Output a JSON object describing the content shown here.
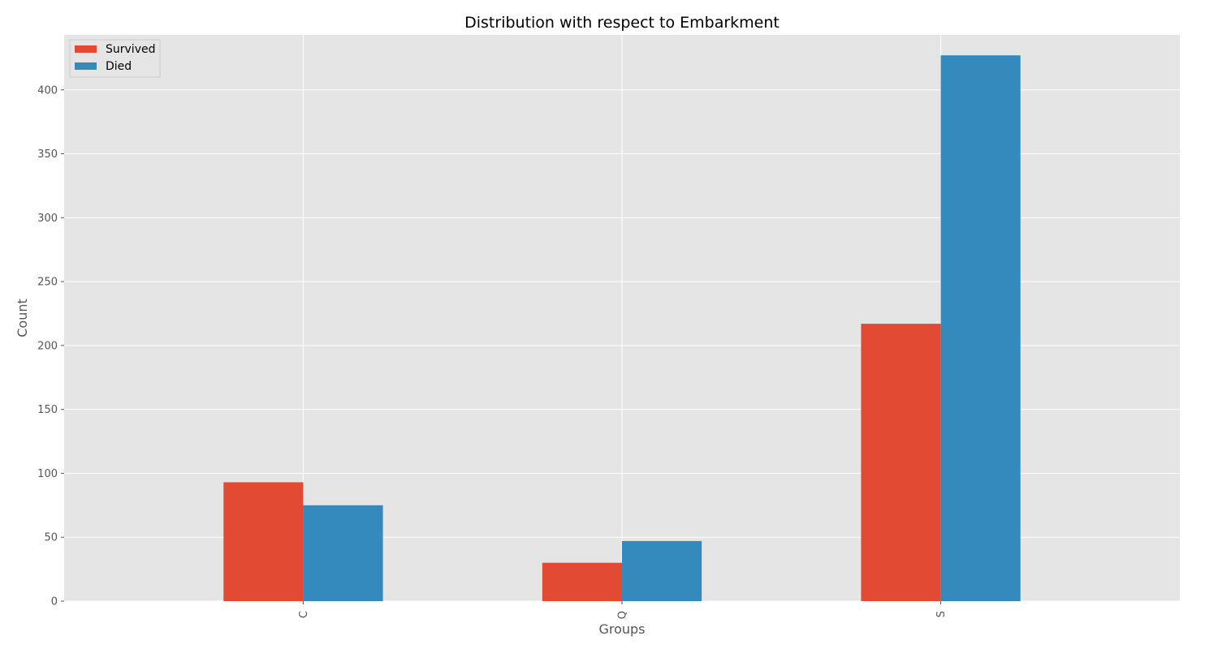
{
  "chart_data": {
    "type": "bar",
    "title": "Distribution with respect to Embarkment",
    "xlabel": "Groups",
    "ylabel": "Count",
    "categories": [
      "C",
      "Q",
      "S"
    ],
    "series": [
      {
        "name": "Survived",
        "values": [
          93,
          30,
          217
        ],
        "color": "#E24A33"
      },
      {
        "name": "Died",
        "values": [
          75,
          47,
          427
        ],
        "color": "#348ABD"
      }
    ],
    "ylim": [
      0,
      443
    ],
    "yticks": [
      0,
      50,
      100,
      150,
      200,
      250,
      300,
      350,
      400
    ],
    "grid": true,
    "legend_position": "top-left",
    "background_color": "#E5E5E5",
    "grid_color": "#FFFFFF"
  }
}
